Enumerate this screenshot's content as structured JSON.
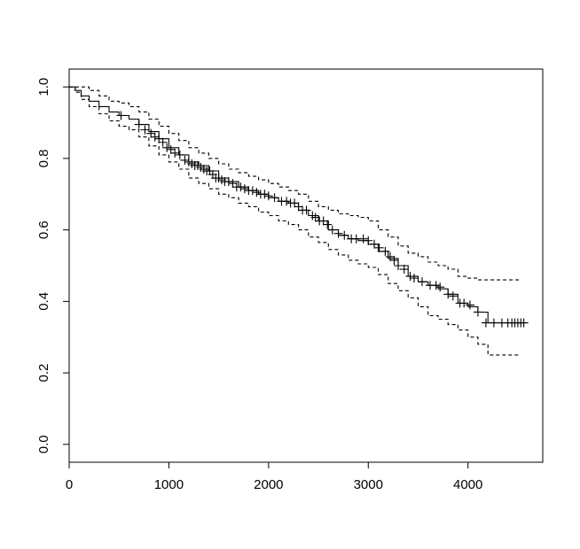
{
  "chart_data": {
    "type": "line",
    "title": "",
    "xlabel": "",
    "ylabel": "",
    "xlim": [
      0,
      4750
    ],
    "ylim": [
      -0.05,
      1.05
    ],
    "x_ticks": [
      "0",
      "1000",
      "2000",
      "3000",
      "4000"
    ],
    "y_ticks": [
      "0.0",
      "0.2",
      "0.4",
      "0.6",
      "0.8",
      "1.0"
    ],
    "grid": false,
    "legend": "none",
    "colors": {
      "line": "#000000",
      "background": "#ffffff"
    },
    "series": [
      {
        "role": "estimate",
        "style": "solid-step",
        "x": [
          0,
          60,
          120,
          200,
          300,
          400,
          500,
          600,
          700,
          800,
          900,
          1000,
          1100,
          1200,
          1300,
          1400,
          1500,
          1600,
          1700,
          1800,
          1900,
          2000,
          2100,
          2200,
          2300,
          2400,
          2500,
          2600,
          2700,
          2800,
          2900,
          3000,
          3100,
          3200,
          3300,
          3400,
          3500,
          3600,
          3700,
          3800,
          3900,
          4000,
          4100,
          4200,
          4580
        ],
        "y": [
          1.0,
          0.99,
          0.975,
          0.96,
          0.945,
          0.93,
          0.92,
          0.91,
          0.895,
          0.875,
          0.855,
          0.83,
          0.81,
          0.79,
          0.78,
          0.765,
          0.745,
          0.735,
          0.72,
          0.71,
          0.7,
          0.69,
          0.68,
          0.675,
          0.655,
          0.64,
          0.625,
          0.6,
          0.585,
          0.575,
          0.57,
          0.56,
          0.54,
          0.52,
          0.5,
          0.47,
          0.455,
          0.445,
          0.435,
          0.42,
          0.395,
          0.385,
          0.37,
          0.34,
          0.34
        ]
      },
      {
        "role": "upper-ci",
        "style": "dashed-step",
        "x": [
          0,
          100,
          200,
          300,
          400,
          500,
          600,
          700,
          800,
          900,
          1000,
          1100,
          1200,
          1300,
          1400,
          1500,
          1600,
          1700,
          1800,
          1900,
          2000,
          2100,
          2200,
          2300,
          2400,
          2500,
          2600,
          2700,
          2800,
          2900,
          3000,
          3100,
          3200,
          3300,
          3400,
          3500,
          3600,
          3700,
          3800,
          3900,
          4000,
          4100,
          4200,
          4520
        ],
        "y": [
          1.0,
          1.0,
          0.99,
          0.975,
          0.96,
          0.955,
          0.945,
          0.93,
          0.91,
          0.89,
          0.87,
          0.85,
          0.83,
          0.815,
          0.8,
          0.785,
          0.77,
          0.76,
          0.75,
          0.74,
          0.73,
          0.72,
          0.71,
          0.7,
          0.68,
          0.665,
          0.655,
          0.645,
          0.64,
          0.635,
          0.625,
          0.6,
          0.58,
          0.555,
          0.535,
          0.525,
          0.51,
          0.5,
          0.49,
          0.47,
          0.465,
          0.46,
          0.46,
          0.46
        ]
      },
      {
        "role": "lower-ci",
        "style": "dashed-step",
        "x": [
          0,
          60,
          120,
          200,
          300,
          400,
          500,
          600,
          700,
          800,
          900,
          1000,
          1100,
          1200,
          1300,
          1400,
          1500,
          1600,
          1700,
          1800,
          1900,
          2000,
          2100,
          2200,
          2300,
          2400,
          2500,
          2600,
          2700,
          2800,
          2900,
          3000,
          3100,
          3200,
          3300,
          3400,
          3500,
          3600,
          3700,
          3800,
          3900,
          4000,
          4100,
          4200,
          4520
        ],
        "y": [
          1.0,
          0.985,
          0.965,
          0.945,
          0.925,
          0.905,
          0.89,
          0.88,
          0.86,
          0.835,
          0.81,
          0.79,
          0.77,
          0.745,
          0.73,
          0.715,
          0.7,
          0.69,
          0.675,
          0.665,
          0.65,
          0.64,
          0.625,
          0.615,
          0.6,
          0.58,
          0.565,
          0.545,
          0.53,
          0.515,
          0.505,
          0.495,
          0.475,
          0.45,
          0.43,
          0.41,
          0.385,
          0.36,
          0.35,
          0.335,
          0.32,
          0.3,
          0.28,
          0.25,
          0.25
        ]
      }
    ],
    "censor_marks": {
      "x": [
        520,
        700,
        760,
        820,
        860,
        900,
        940,
        980,
        1020,
        1060,
        1110,
        1160,
        1200,
        1230,
        1260,
        1290,
        1320,
        1350,
        1380,
        1410,
        1440,
        1470,
        1500,
        1530,
        1560,
        1600,
        1640,
        1680,
        1720,
        1760,
        1800,
        1840,
        1880,
        1920,
        1960,
        2000,
        2060,
        2130,
        2180,
        2220,
        2260,
        2300,
        2340,
        2380,
        2440,
        2470,
        2510,
        2550,
        2590,
        2640,
        2700,
        2760,
        2830,
        2880,
        2950,
        3000,
        3060,
        3110,
        3170,
        3220,
        3260,
        3300,
        3360,
        3420,
        3460,
        3540,
        3620,
        3680,
        3720,
        3800,
        3850,
        3920,
        3960,
        4020,
        4100,
        4180,
        4260,
        4340,
        4400,
        4440,
        4470,
        4500,
        4530,
        4560
      ],
      "y": [
        0.92,
        0.895,
        0.88,
        0.87,
        0.86,
        0.855,
        0.845,
        0.83,
        0.825,
        0.815,
        0.81,
        0.795,
        0.79,
        0.785,
        0.78,
        0.78,
        0.775,
        0.77,
        0.765,
        0.765,
        0.755,
        0.745,
        0.745,
        0.74,
        0.735,
        0.735,
        0.73,
        0.72,
        0.72,
        0.715,
        0.71,
        0.71,
        0.705,
        0.7,
        0.7,
        0.695,
        0.69,
        0.68,
        0.68,
        0.675,
        0.675,
        0.665,
        0.655,
        0.655,
        0.64,
        0.635,
        0.625,
        0.625,
        0.615,
        0.6,
        0.59,
        0.585,
        0.575,
        0.575,
        0.575,
        0.57,
        0.56,
        0.55,
        0.54,
        0.525,
        0.515,
        0.5,
        0.49,
        0.47,
        0.465,
        0.455,
        0.445,
        0.445,
        0.44,
        0.42,
        0.415,
        0.395,
        0.395,
        0.39,
        0.37,
        0.34,
        0.34,
        0.34,
        0.34,
        0.34,
        0.34,
        0.34,
        0.34,
        0.34
      ]
    }
  }
}
